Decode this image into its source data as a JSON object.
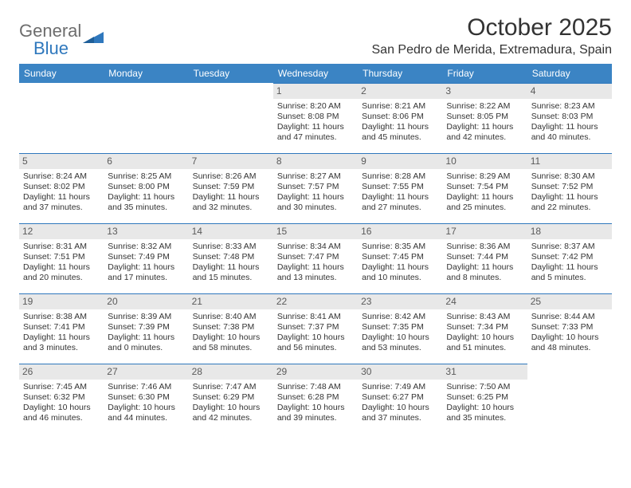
{
  "logo": {
    "text1": "General",
    "text2": "Blue"
  },
  "title": "October 2025",
  "location": "San Pedro de Merida, Extremadura, Spain",
  "colors": {
    "header_bg": "#3b84c4",
    "header_text": "#ffffff",
    "daynum_bg": "#e8e8e8",
    "daynum_border": "#2f78bd",
    "text": "#333333",
    "logo_gray": "#6d6d6d",
    "logo_blue": "#2f78bd"
  },
  "weekdays": [
    "Sunday",
    "Monday",
    "Tuesday",
    "Wednesday",
    "Thursday",
    "Friday",
    "Saturday"
  ],
  "weeks": [
    [
      {
        "day": "",
        "lines": []
      },
      {
        "day": "",
        "lines": []
      },
      {
        "day": "",
        "lines": []
      },
      {
        "day": "1",
        "lines": [
          "Sunrise: 8:20 AM",
          "Sunset: 8:08 PM",
          "Daylight: 11 hours",
          "and 47 minutes."
        ]
      },
      {
        "day": "2",
        "lines": [
          "Sunrise: 8:21 AM",
          "Sunset: 8:06 PM",
          "Daylight: 11 hours",
          "and 45 minutes."
        ]
      },
      {
        "day": "3",
        "lines": [
          "Sunrise: 8:22 AM",
          "Sunset: 8:05 PM",
          "Daylight: 11 hours",
          "and 42 minutes."
        ]
      },
      {
        "day": "4",
        "lines": [
          "Sunrise: 8:23 AM",
          "Sunset: 8:03 PM",
          "Daylight: 11 hours",
          "and 40 minutes."
        ]
      }
    ],
    [
      {
        "day": "5",
        "lines": [
          "Sunrise: 8:24 AM",
          "Sunset: 8:02 PM",
          "Daylight: 11 hours",
          "and 37 minutes."
        ]
      },
      {
        "day": "6",
        "lines": [
          "Sunrise: 8:25 AM",
          "Sunset: 8:00 PM",
          "Daylight: 11 hours",
          "and 35 minutes."
        ]
      },
      {
        "day": "7",
        "lines": [
          "Sunrise: 8:26 AM",
          "Sunset: 7:59 PM",
          "Daylight: 11 hours",
          "and 32 minutes."
        ]
      },
      {
        "day": "8",
        "lines": [
          "Sunrise: 8:27 AM",
          "Sunset: 7:57 PM",
          "Daylight: 11 hours",
          "and 30 minutes."
        ]
      },
      {
        "day": "9",
        "lines": [
          "Sunrise: 8:28 AM",
          "Sunset: 7:55 PM",
          "Daylight: 11 hours",
          "and 27 minutes."
        ]
      },
      {
        "day": "10",
        "lines": [
          "Sunrise: 8:29 AM",
          "Sunset: 7:54 PM",
          "Daylight: 11 hours",
          "and 25 minutes."
        ]
      },
      {
        "day": "11",
        "lines": [
          "Sunrise: 8:30 AM",
          "Sunset: 7:52 PM",
          "Daylight: 11 hours",
          "and 22 minutes."
        ]
      }
    ],
    [
      {
        "day": "12",
        "lines": [
          "Sunrise: 8:31 AM",
          "Sunset: 7:51 PM",
          "Daylight: 11 hours",
          "and 20 minutes."
        ]
      },
      {
        "day": "13",
        "lines": [
          "Sunrise: 8:32 AM",
          "Sunset: 7:49 PM",
          "Daylight: 11 hours",
          "and 17 minutes."
        ]
      },
      {
        "day": "14",
        "lines": [
          "Sunrise: 8:33 AM",
          "Sunset: 7:48 PM",
          "Daylight: 11 hours",
          "and 15 minutes."
        ]
      },
      {
        "day": "15",
        "lines": [
          "Sunrise: 8:34 AM",
          "Sunset: 7:47 PM",
          "Daylight: 11 hours",
          "and 13 minutes."
        ]
      },
      {
        "day": "16",
        "lines": [
          "Sunrise: 8:35 AM",
          "Sunset: 7:45 PM",
          "Daylight: 11 hours",
          "and 10 minutes."
        ]
      },
      {
        "day": "17",
        "lines": [
          "Sunrise: 8:36 AM",
          "Sunset: 7:44 PM",
          "Daylight: 11 hours",
          "and 8 minutes."
        ]
      },
      {
        "day": "18",
        "lines": [
          "Sunrise: 8:37 AM",
          "Sunset: 7:42 PM",
          "Daylight: 11 hours",
          "and 5 minutes."
        ]
      }
    ],
    [
      {
        "day": "19",
        "lines": [
          "Sunrise: 8:38 AM",
          "Sunset: 7:41 PM",
          "Daylight: 11 hours",
          "and 3 minutes."
        ]
      },
      {
        "day": "20",
        "lines": [
          "Sunrise: 8:39 AM",
          "Sunset: 7:39 PM",
          "Daylight: 11 hours",
          "and 0 minutes."
        ]
      },
      {
        "day": "21",
        "lines": [
          "Sunrise: 8:40 AM",
          "Sunset: 7:38 PM",
          "Daylight: 10 hours",
          "and 58 minutes."
        ]
      },
      {
        "day": "22",
        "lines": [
          "Sunrise: 8:41 AM",
          "Sunset: 7:37 PM",
          "Daylight: 10 hours",
          "and 56 minutes."
        ]
      },
      {
        "day": "23",
        "lines": [
          "Sunrise: 8:42 AM",
          "Sunset: 7:35 PM",
          "Daylight: 10 hours",
          "and 53 minutes."
        ]
      },
      {
        "day": "24",
        "lines": [
          "Sunrise: 8:43 AM",
          "Sunset: 7:34 PM",
          "Daylight: 10 hours",
          "and 51 minutes."
        ]
      },
      {
        "day": "25",
        "lines": [
          "Sunrise: 8:44 AM",
          "Sunset: 7:33 PM",
          "Daylight: 10 hours",
          "and 48 minutes."
        ]
      }
    ],
    [
      {
        "day": "26",
        "lines": [
          "Sunrise: 7:45 AM",
          "Sunset: 6:32 PM",
          "Daylight: 10 hours",
          "and 46 minutes."
        ]
      },
      {
        "day": "27",
        "lines": [
          "Sunrise: 7:46 AM",
          "Sunset: 6:30 PM",
          "Daylight: 10 hours",
          "and 44 minutes."
        ]
      },
      {
        "day": "28",
        "lines": [
          "Sunrise: 7:47 AM",
          "Sunset: 6:29 PM",
          "Daylight: 10 hours",
          "and 42 minutes."
        ]
      },
      {
        "day": "29",
        "lines": [
          "Sunrise: 7:48 AM",
          "Sunset: 6:28 PM",
          "Daylight: 10 hours",
          "and 39 minutes."
        ]
      },
      {
        "day": "30",
        "lines": [
          "Sunrise: 7:49 AM",
          "Sunset: 6:27 PM",
          "Daylight: 10 hours",
          "and 37 minutes."
        ]
      },
      {
        "day": "31",
        "lines": [
          "Sunrise: 7:50 AM",
          "Sunset: 6:25 PM",
          "Daylight: 10 hours",
          "and 35 minutes."
        ]
      },
      {
        "day": "",
        "lines": []
      }
    ]
  ]
}
